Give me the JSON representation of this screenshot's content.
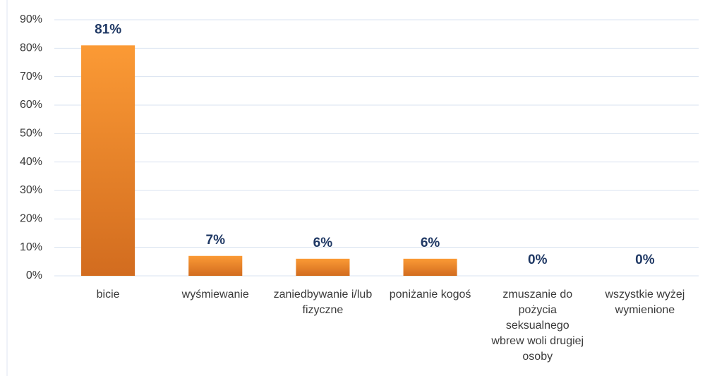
{
  "chart_data": {
    "type": "bar",
    "categories": [
      "bicie",
      "wyśmiewanie",
      "zaniedbywanie i/lub fizyczne",
      "poniżanie kogoś",
      "zmuszanie do pożycia seksualnego wbrew woli drugiej osoby",
      "wszystkie wyżej wymienione"
    ],
    "values": [
      81,
      7,
      6,
      6,
      0,
      0
    ],
    "value_labels": [
      "81%",
      "7%",
      "6%",
      "6%",
      "0%",
      "0%"
    ],
    "color": "#f28c28",
    "ylim": [
      0,
      90
    ],
    "yticks": [
      {
        "value": 0,
        "label": "0%"
      },
      {
        "value": 10,
        "label": "10%"
      },
      {
        "value": 20,
        "label": "20%"
      },
      {
        "value": 30,
        "label": "30%"
      },
      {
        "value": 40,
        "label": "40%"
      },
      {
        "value": 50,
        "label": "50%"
      },
      {
        "value": 60,
        "label": "60%"
      },
      {
        "value": 70,
        "label": "70%"
      },
      {
        "value": 80,
        "label": "80%"
      },
      {
        "value": 90,
        "label": "90%"
      }
    ],
    "grid": true
  }
}
